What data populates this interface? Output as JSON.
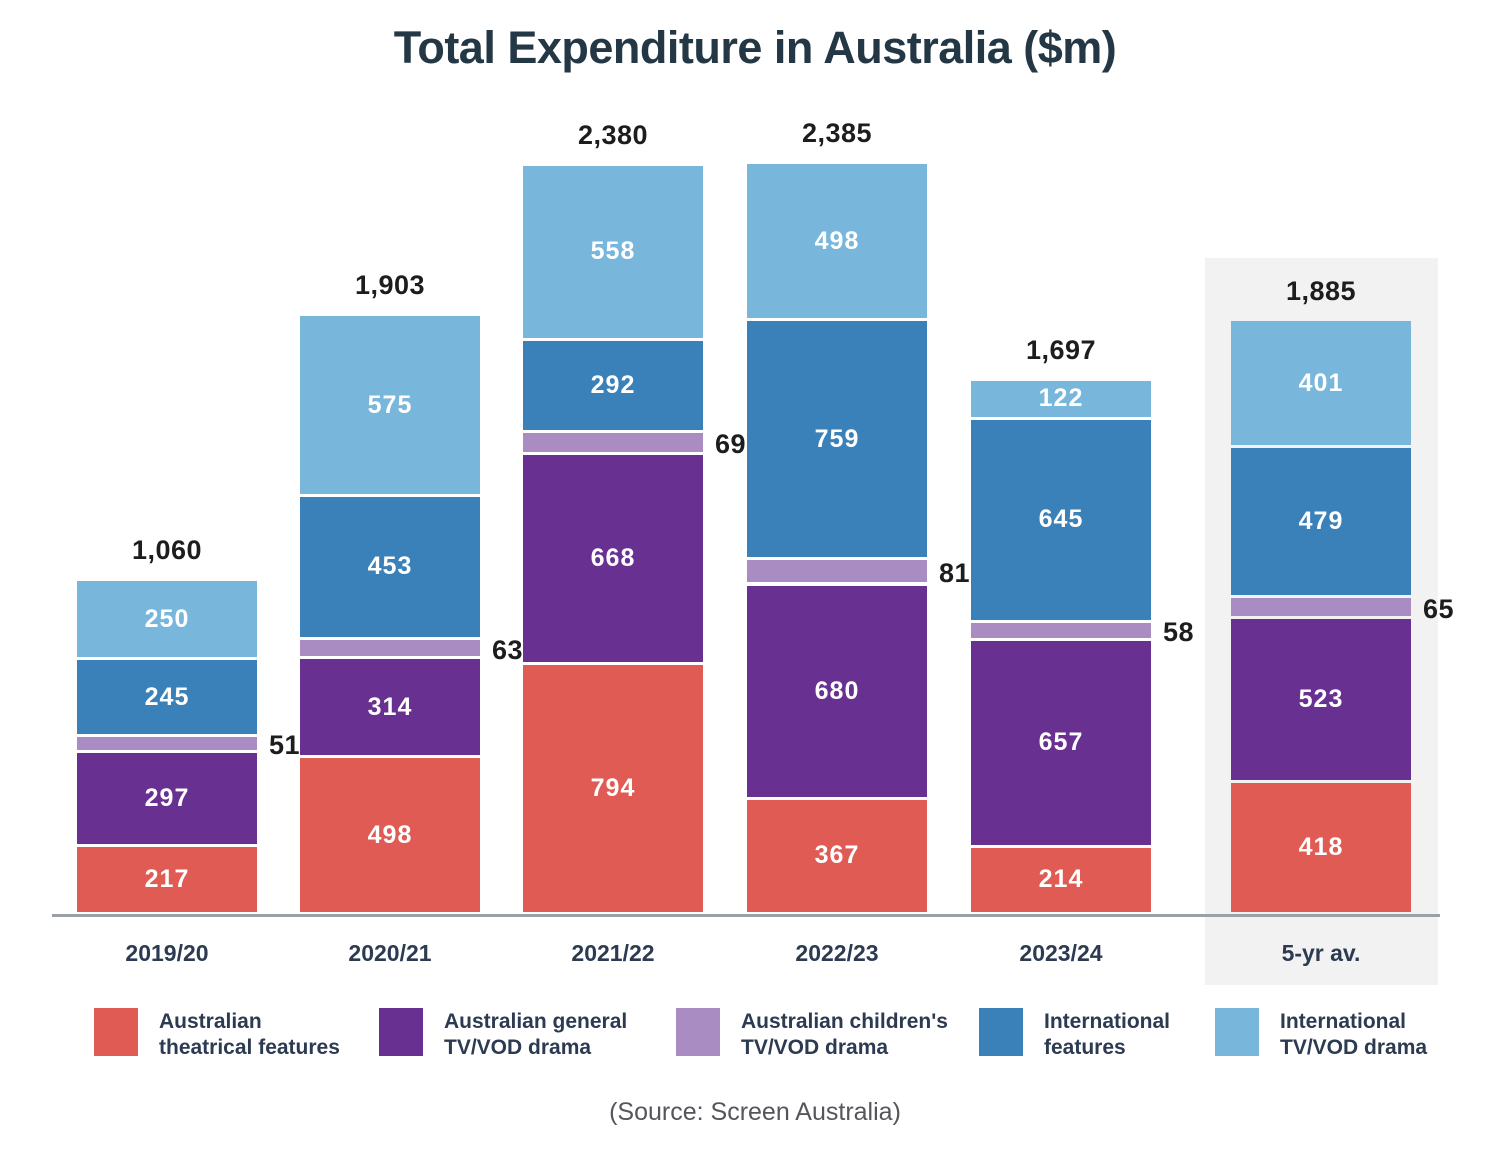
{
  "title": "Total Expenditure in Australia ($m)",
  "source": "(Source: Screen Australia)",
  "chart_data": {
    "type": "bar",
    "subtype": "stacked",
    "title": "Total Expenditure in Australia ($m)",
    "unit": "$m",
    "categories": [
      "2019/20",
      "2020/21",
      "2021/22",
      "2022/23",
      "2023/24",
      "5-yr av."
    ],
    "series": [
      {
        "name": "Australian theatrical features",
        "color": "#e05b54",
        "values": [
          217,
          498,
          794,
          367,
          214,
          418
        ]
      },
      {
        "name": "Australian general TV/VOD drama",
        "color": "#683090",
        "values": [
          297,
          314,
          668,
          680,
          657,
          523
        ]
      },
      {
        "name": "Australian children's TV/VOD drama",
        "color": "#a98cc1",
        "values": [
          51,
          63,
          69,
          81,
          58,
          65
        ]
      },
      {
        "name": "International features",
        "color": "#3a80b9",
        "values": [
          245,
          453,
          292,
          759,
          645,
          479
        ]
      },
      {
        "name": "International TV/VOD drama",
        "color": "#79b6db",
        "values": [
          250,
          575,
          558,
          498,
          122,
          401
        ]
      }
    ],
    "totals": [
      1060,
      1903,
      2380,
      2385,
      1697,
      1885
    ],
    "total_labels": [
      "1,060",
      "1,903",
      "2,380",
      "2,385",
      "1,697",
      "1,885"
    ],
    "outside_label_series_index": 2,
    "highlight_category_index": 5,
    "highlight_band_color": "#f2f2f3",
    "axis_line_color": "#9b9fa6",
    "legend_position": "bottom",
    "grid": false,
    "ylim": [
      0,
      2385
    ]
  },
  "legend": {
    "items": [
      {
        "line1": "Australian",
        "line2": "theatrical features"
      },
      {
        "line1": "Australian general",
        "line2": "TV/VOD drama"
      },
      {
        "line1": "Australian children's",
        "line2": "TV/VOD drama"
      },
      {
        "line1": "International",
        "line2": "features"
      },
      {
        "line1": "International",
        "line2": "TV/VOD drama"
      }
    ]
  }
}
